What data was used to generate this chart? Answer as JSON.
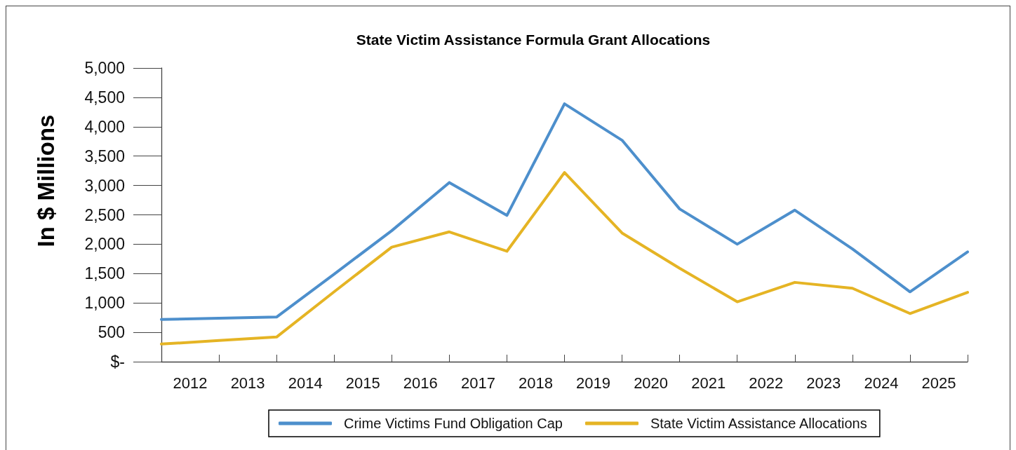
{
  "chart_data": {
    "type": "line",
    "title": "State Victim Assistance Formula Grant Allocations",
    "ylabel": "In $ Millions",
    "x": [
      2011.5,
      2012.5,
      2013.5,
      2014.5,
      2015.5,
      2016.5,
      2017.5,
      2018.5,
      2019.5,
      2020.5,
      2021.5,
      2022.5,
      2023.5,
      2024.5,
      2025.5
    ],
    "xlim": [
      2011.5,
      2025.5
    ],
    "xticks": [
      {
        "value": 2011.5,
        "label": null
      },
      2012,
      {
        "value": 2012.5,
        "label": null
      },
      2013,
      {
        "value": 2013.5,
        "label": null
      },
      2014,
      {
        "value": 2014.5,
        "label": null
      },
      2015,
      {
        "value": 2015.5,
        "label": null
      },
      2016,
      {
        "value": 2016.5,
        "label": null
      },
      2017,
      {
        "value": 2017.5,
        "label": null
      },
      2018,
      {
        "value": 2018.5,
        "label": null
      },
      2019,
      {
        "value": 2019.5,
        "label": null
      },
      2020,
      {
        "value": 2020.5,
        "label": null
      },
      2021,
      {
        "value": 2021.5,
        "label": null
      },
      2022,
      {
        "value": 2022.5,
        "label": null
      },
      2023,
      {
        "value": 2023.5,
        "label": null
      },
      2024,
      {
        "value": 2024.5,
        "label": null
      },
      2025,
      {
        "value": 2025.5,
        "label": null
      }
    ],
    "ylim": [
      0,
      5000
    ],
    "yticks": [
      {
        "value": 0,
        "label": "$-"
      },
      500,
      {
        "value": 1000,
        "label": "1,000"
      },
      {
        "value": 1500,
        "label": "1,500"
      },
      {
        "value": 2000,
        "label": "2,000"
      },
      {
        "value": 2500,
        "label": "2,500"
      },
      {
        "value": 3000,
        "label": "3,000"
      },
      {
        "value": 3500,
        "label": "3,500"
      },
      {
        "value": 4000,
        "label": "4,000"
      },
      {
        "value": 4500,
        "label": "4,500"
      },
      {
        "value": 5000,
        "label": "5,000"
      }
    ],
    "series": [
      {
        "name": "Crime Victims Fund Obligation Cap",
        "color": "#4d8fcc",
        "values": [
          720,
          740,
          760,
          1490,
          2230,
          3050,
          2490,
          4390,
          3770,
          2600,
          2000,
          2580,
          1920,
          1190,
          1870
        ]
      },
      {
        "name": "State Victim Assistance Allocations",
        "color": "#e5b424",
        "values": [
          300,
          360,
          420,
          1190,
          1950,
          2210,
          1880,
          3220,
          2190,
          1590,
          1020,
          1350,
          1250,
          820,
          1180
        ]
      }
    ],
    "legend": "bottom",
    "grid": false,
    "marker": "none",
    "line_style": "solid"
  }
}
